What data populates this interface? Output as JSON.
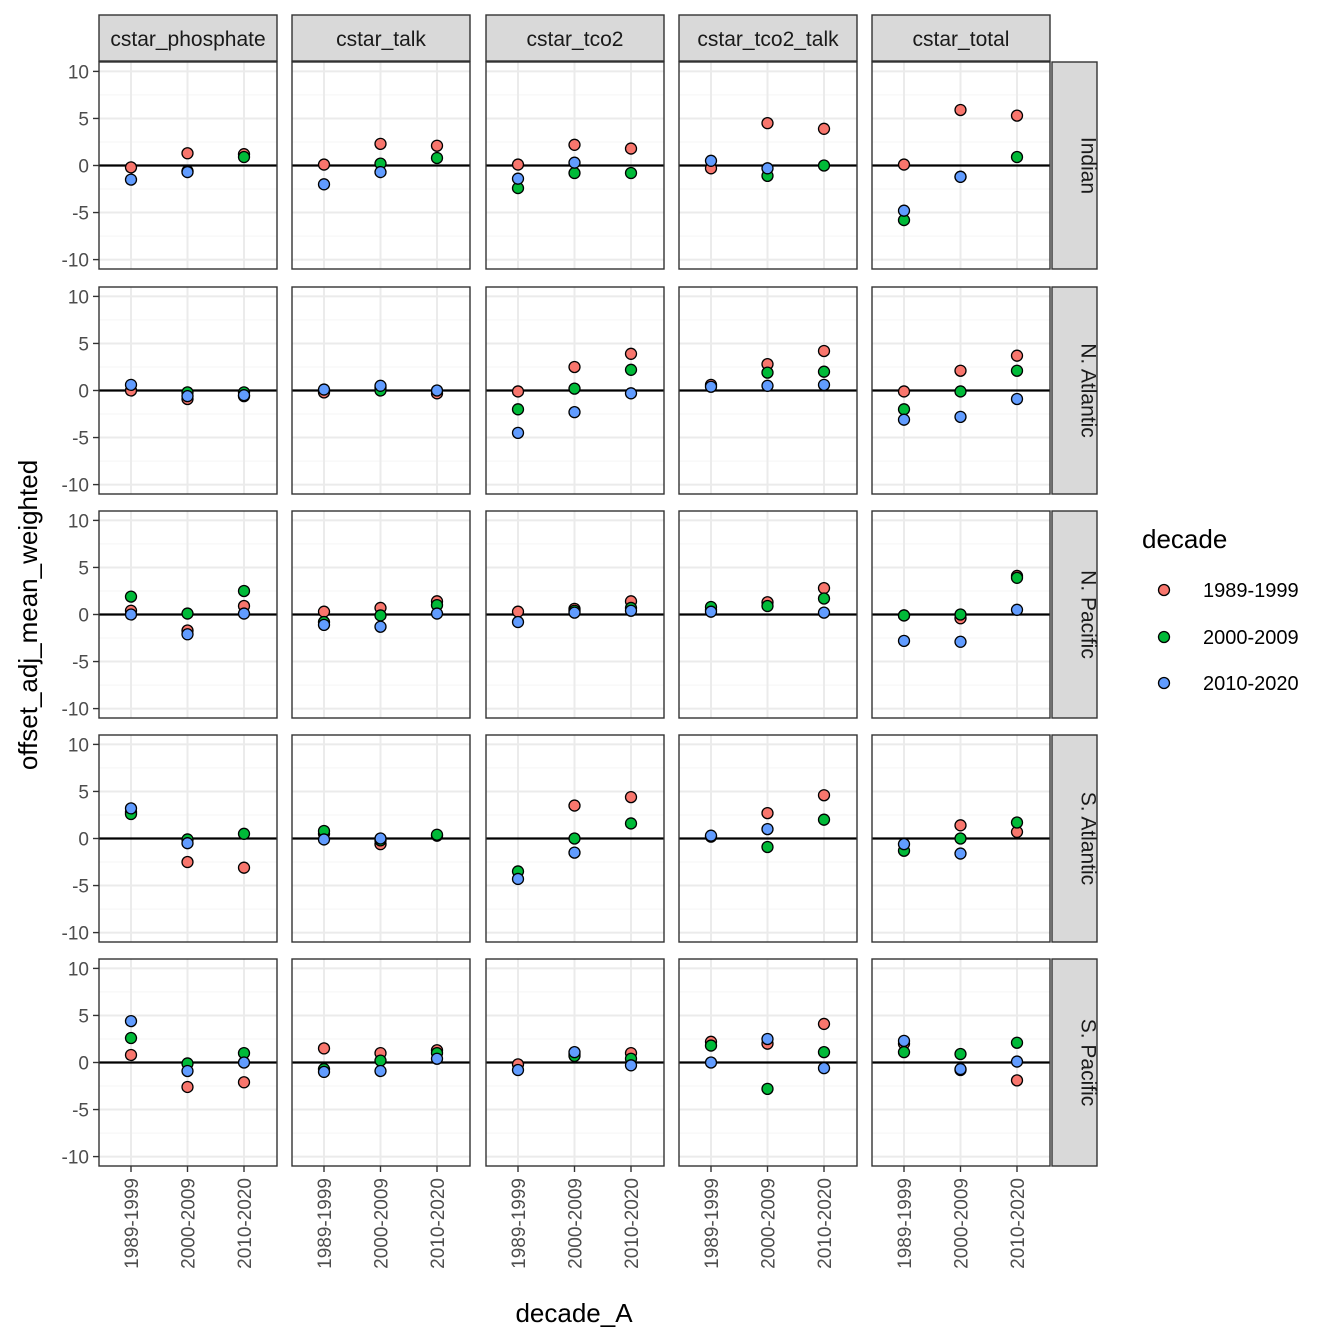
{
  "chart_data": {
    "type": "scatter",
    "xlabel": "decade_A",
    "ylabel": "offset_adj_mean_weighted",
    "ylim": [
      -11,
      11
    ],
    "yticks": [
      -10,
      -5,
      0,
      5,
      10
    ],
    "yticks_labels": [
      "-10",
      "-5",
      "0",
      "5",
      "10"
    ],
    "reference_line_y": 0,
    "categories": [
      "1989-1999",
      "2000-2009",
      "2010-2020"
    ],
    "facet_cols": [
      "cstar_phosphate",
      "cstar_talk",
      "cstar_tco2",
      "cstar_tco2_talk",
      "cstar_total"
    ],
    "facet_rows": [
      "Indian",
      "N. Atlantic",
      "N. Pacific",
      "S. Atlantic",
      "S. Pacific"
    ],
    "legend": {
      "title": "decade",
      "entries": [
        {
          "name": "1989-1999",
          "color": "#F8766D"
        },
        {
          "name": "2000-2009",
          "color": "#00BA38"
        },
        {
          "name": "2010-2020",
          "color": "#619CFF"
        }
      ]
    },
    "series_order": [
      "1989-1999",
      "2000-2009",
      "2010-2020"
    ],
    "panels": {
      "Indian": {
        "cstar_phosphate": [
          [
            -0.2,
            1.3,
            1.2
          ],
          [
            null,
            -0.6,
            0.9
          ],
          [
            -1.5,
            -0.7,
            null
          ]
        ],
        "cstar_talk": [
          [
            0.1,
            2.3,
            2.1
          ],
          [
            null,
            0.2,
            0.8
          ],
          [
            -2.0,
            -0.7,
            null
          ]
        ],
        "cstar_tco2": [
          [
            0.1,
            2.2,
            1.8
          ],
          [
            -2.4,
            -0.8,
            -0.8
          ],
          [
            -1.4,
            0.3,
            null
          ]
        ],
        "cstar_tco2_talk": [
          [
            -0.3,
            4.5,
            3.9
          ],
          [
            null,
            -1.1,
            0.0
          ],
          [
            0.5,
            -0.3,
            null
          ]
        ],
        "cstar_total": [
          [
            0.1,
            5.9,
            5.3
          ],
          [
            -5.8,
            -1.2,
            0.9
          ],
          [
            -4.8,
            -1.2,
            null
          ]
        ]
      },
      "N. Atlantic": {
        "cstar_phosphate": [
          [
            0.0,
            -0.9,
            -0.6
          ],
          [
            null,
            -0.2,
            -0.2
          ],
          [
            0.6,
            -0.6,
            -0.5
          ]
        ],
        "cstar_talk": [
          [
            -0.2,
            0.3,
            -0.3
          ],
          [
            null,
            0.0,
            null
          ],
          [
            0.1,
            0.5,
            0.0
          ]
        ],
        "cstar_tco2": [
          [
            -0.1,
            2.5,
            3.9
          ],
          [
            -2.0,
            0.2,
            2.2
          ],
          [
            -4.5,
            -2.3,
            -0.3
          ]
        ],
        "cstar_tco2_talk": [
          [
            0.6,
            2.8,
            4.2
          ],
          [
            null,
            1.9,
            2.0
          ],
          [
            0.4,
            0.5,
            0.6
          ]
        ],
        "cstar_total": [
          [
            -0.1,
            2.1,
            3.7
          ],
          [
            -2.0,
            -0.1,
            2.1
          ],
          [
            -3.1,
            -2.8,
            -0.9
          ]
        ]
      },
      "N. Pacific": {
        "cstar_phosphate": [
          [
            0.4,
            -1.7,
            0.9
          ],
          [
            1.9,
            0.1,
            2.5
          ],
          [
            0.0,
            -2.1,
            0.1
          ]
        ],
        "cstar_talk": [
          [
            0.3,
            0.7,
            1.4
          ],
          [
            -0.8,
            -0.1,
            1.0
          ],
          [
            -1.1,
            -1.3,
            0.1
          ]
        ],
        "cstar_tco2": [
          [
            0.3,
            0.6,
            1.4
          ],
          [
            null,
            0.4,
            0.7
          ],
          [
            -0.8,
            0.2,
            0.4
          ]
        ],
        "cstar_tco2_talk": [
          [
            0.5,
            1.3,
            2.8
          ],
          [
            0.8,
            0.9,
            1.7
          ],
          [
            0.3,
            null,
            0.2
          ]
        ],
        "cstar_total": [
          [
            -0.1,
            -0.4,
            4.1
          ],
          [
            -0.1,
            0.0,
            3.9
          ],
          [
            -2.8,
            -2.9,
            0.5
          ]
        ]
      },
      "S. Atlantic": {
        "cstar_phosphate": [
          [
            2.8,
            -2.5,
            -3.1
          ],
          [
            2.6,
            -0.1,
            0.5
          ],
          [
            3.2,
            -0.5,
            null
          ]
        ],
        "cstar_talk": [
          [
            0.5,
            -0.6,
            0.3
          ],
          [
            0.8,
            -0.2,
            0.4
          ],
          [
            -0.1,
            0.0,
            null
          ]
        ],
        "cstar_tco2": [
          [
            null,
            3.5,
            4.4
          ],
          [
            -3.5,
            0.0,
            1.6
          ],
          [
            -4.3,
            -1.5,
            null
          ]
        ],
        "cstar_tco2_talk": [
          [
            0.2,
            2.7,
            4.6
          ],
          [
            null,
            -0.9,
            2.0
          ],
          [
            0.3,
            1.0,
            null
          ]
        ],
        "cstar_total": [
          [
            null,
            1.4,
            0.7
          ],
          [
            -1.3,
            0.0,
            1.7
          ],
          [
            -0.6,
            -1.6,
            null
          ]
        ]
      },
      "S. Pacific": {
        "cstar_phosphate": [
          [
            0.8,
            -2.6,
            -2.1
          ],
          [
            2.6,
            -0.1,
            1.0
          ],
          [
            4.4,
            -0.9,
            0.0
          ]
        ],
        "cstar_talk": [
          [
            1.5,
            1.0,
            1.3
          ],
          [
            -0.7,
            0.2,
            1.0
          ],
          [
            -1.0,
            -0.9,
            0.4
          ]
        ],
        "cstar_tco2": [
          [
            -0.2,
            0.9,
            1.0
          ],
          [
            null,
            0.7,
            0.4
          ],
          [
            -0.8,
            1.1,
            -0.3
          ]
        ],
        "cstar_tco2_talk": [
          [
            2.2,
            2.0,
            4.1
          ],
          [
            1.8,
            -2.8,
            1.1
          ],
          [
            0.0,
            2.5,
            -0.6
          ]
        ],
        "cstar_total": [
          [
            2.0,
            -0.8,
            -1.9
          ],
          [
            1.1,
            0.9,
            2.1
          ],
          [
            2.3,
            -0.7,
            0.1
          ]
        ]
      }
    }
  }
}
